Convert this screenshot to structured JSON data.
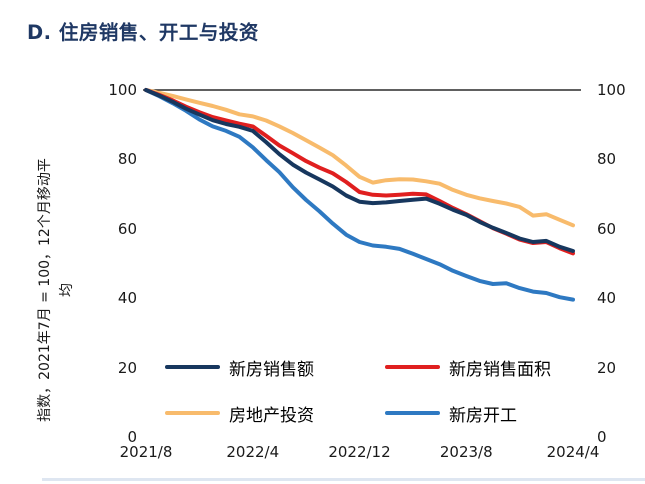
{
  "title": "D. 住房销售、开工与投资",
  "colors": {
    "title": "#1F3864",
    "axis_line": "#000000",
    "navy": "#17375E",
    "red": "#E01F1F",
    "orange": "#F8BB6C",
    "blue": "#2E79C2"
  },
  "y_axis": {
    "label_line1": "指数，2021年7月 = 100，12个月移动平",
    "label_line2": "均",
    "ticks": [
      100,
      80,
      60,
      40,
      20,
      0
    ]
  },
  "x_axis": {
    "tick_labels": [
      "2021/8",
      "2022/4",
      "2022/12",
      "2023/8",
      "2024/4"
    ]
  },
  "legend": [
    {
      "label": "新房销售额",
      "color": "#17375E"
    },
    {
      "label": "新房销售面积",
      "color": "#E01F1F"
    },
    {
      "label": "房地产投资",
      "color": "#F8BB6C"
    },
    {
      "label": "新房开工",
      "color": "#2E79C2"
    }
  ],
  "chart_data": {
    "type": "line",
    "title": "D. 住房销售、开工与投资",
    "ylabel": "指数，2021年7月 = 100，12个月移动平均",
    "ylim": [
      0,
      100
    ],
    "y_ticks": [
      0,
      20,
      40,
      60,
      80,
      100
    ],
    "grid": "top-line-at-100-only",
    "legend_position": "below-plot",
    "x": [
      "2021/8",
      "2021/9",
      "2021/10",
      "2021/11",
      "2021/12",
      "2022/1",
      "2022/2",
      "2022/3",
      "2022/4",
      "2022/5",
      "2022/6",
      "2022/7",
      "2022/8",
      "2022/9",
      "2022/10",
      "2022/11",
      "2022/12",
      "2023/1",
      "2023/2",
      "2023/3",
      "2023/4",
      "2023/5",
      "2023/6",
      "2023/7",
      "2023/8",
      "2023/9",
      "2023/10",
      "2023/11",
      "2023/12",
      "2024/1",
      "2024/2",
      "2024/3",
      "2024/4"
    ],
    "x_tick_labels": [
      "2021/8",
      "2022/4",
      "2022/12",
      "2023/8",
      "2024/4"
    ],
    "series": [
      {
        "name": "房地产投资",
        "color": "#F8BB6C",
        "values": [
          100,
          99.2,
          98.3,
          97.3,
          96.3,
          95.4,
          94.3,
          93.0,
          92.4,
          91.2,
          89.5,
          87.6,
          85.5,
          83.4,
          81.2,
          78.2,
          75.0,
          73.3,
          74.0,
          74.3,
          74.2,
          73.7,
          73.0,
          71.2,
          69.8,
          68.8,
          68.0,
          67.3,
          66.3,
          63.8,
          64.2,
          62.6,
          61.0
        ]
      },
      {
        "name": "新房开工",
        "color": "#2E79C2",
        "values": [
          100,
          98.2,
          96.2,
          94.0,
          91.5,
          89.5,
          88.2,
          86.5,
          83.5,
          79.8,
          76.3,
          72.0,
          68.3,
          65.0,
          61.5,
          58.3,
          56.2,
          55.2,
          54.8,
          54.2,
          52.8,
          51.3,
          49.8,
          47.9,
          46.4,
          45.0,
          44.1,
          44.3,
          42.9,
          41.9,
          41.5,
          40.3,
          39.6
        ]
      },
      {
        "name": "新房销售面积",
        "color": "#E01F1F",
        "values": [
          100,
          98.6,
          97.0,
          95.2,
          93.6,
          92.2,
          91.2,
          90.3,
          89.5,
          86.8,
          84.0,
          81.8,
          79.5,
          77.6,
          76.0,
          73.5,
          70.6,
          69.8,
          69.6,
          69.8,
          70.1,
          69.9,
          68.0,
          66.0,
          64.2,
          62.2,
          60.2,
          58.6,
          56.9,
          55.9,
          56.2,
          54.4,
          52.9
        ]
      },
      {
        "name": "新房销售额",
        "color": "#17375E",
        "values": [
          100,
          98.4,
          96.6,
          94.6,
          92.9,
          91.3,
          90.2,
          89.4,
          88.2,
          85.0,
          81.5,
          78.5,
          76.2,
          74.2,
          72.2,
          69.6,
          67.8,
          67.4,
          67.6,
          68.0,
          68.4,
          68.7,
          67.2,
          65.5,
          64.0,
          62.0,
          60.3,
          58.8,
          57.2,
          56.2,
          56.5,
          54.8,
          53.6
        ]
      }
    ]
  }
}
